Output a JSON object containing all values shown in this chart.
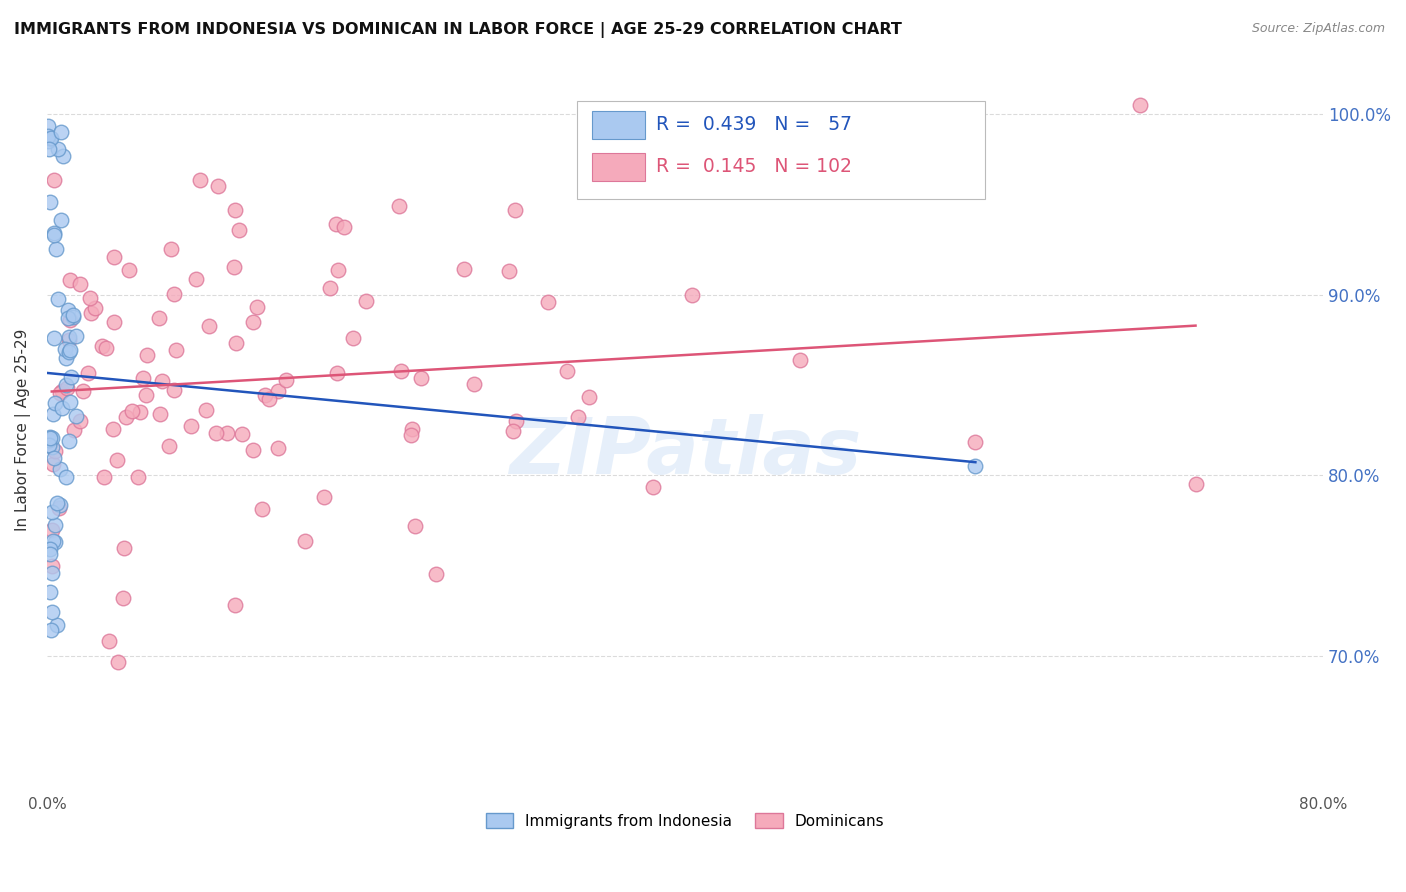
{
  "title": "IMMIGRANTS FROM INDONESIA VS DOMINICAN IN LABOR FORCE | AGE 25-29 CORRELATION CHART",
  "source": "Source: ZipAtlas.com",
  "ylabel": "In Labor Force | Age 25-29",
  "x_min": 0.0,
  "x_max": 0.8,
  "y_min": 0.625,
  "y_max": 1.025,
  "y_ticks": [
    0.7,
    0.8,
    0.9,
    1.0
  ],
  "y_tick_labels": [
    "70.0%",
    "80.0%",
    "90.0%",
    "100.0%"
  ],
  "x_ticks": [
    0.0,
    0.1,
    0.2,
    0.3,
    0.4,
    0.5,
    0.6,
    0.7,
    0.8
  ],
  "x_tick_labels": [
    "0.0%",
    "",
    "",
    "",
    "",
    "",
    "",
    "",
    "80.0%"
  ],
  "watermark": "ZIPatlas",
  "indonesia_color": "#aac9f0",
  "indonesia_edge": "#6699cc",
  "dominican_color": "#f5aabb",
  "dominican_edge": "#dd7799",
  "indonesia_trend_color": "#2255bb",
  "dominican_trend_color": "#dd5577",
  "indonesia_R": 0.439,
  "indonesia_N": 57,
  "dominican_R": 0.145,
  "dominican_N": 102
}
